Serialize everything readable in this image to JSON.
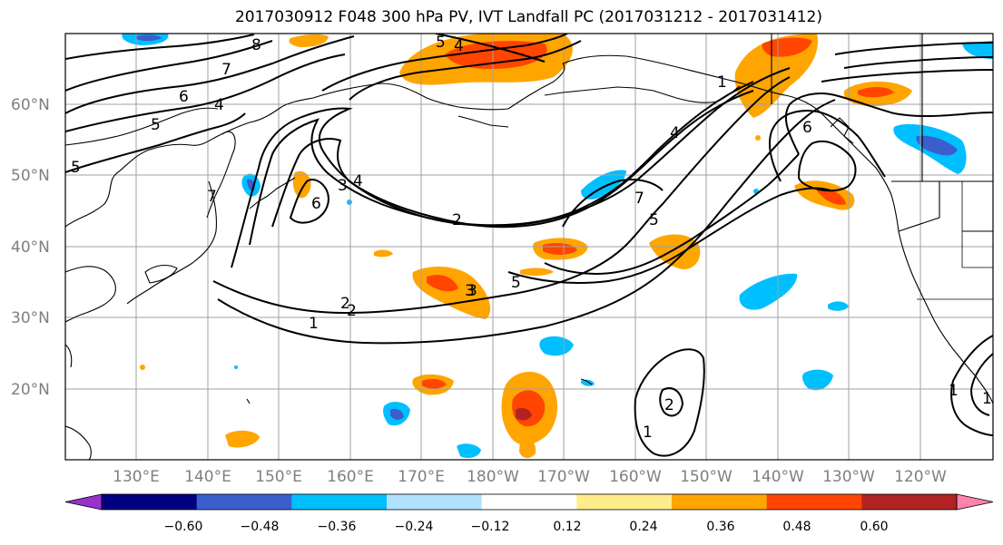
{
  "title": "2017030912 F048 300 hPa PV, IVT Landfall PC (2017031212 - 2017031412)",
  "lat_labels": [
    "60°N",
    "50°N",
    "40°N",
    "30°N",
    "20°N"
  ],
  "lon_labels": [
    "130°E",
    "140°E",
    "150°E",
    "160°E",
    "170°E",
    "180°W",
    "170°W",
    "160°W",
    "150°W",
    "140°W",
    "130°W",
    "120°W"
  ],
  "colorbar": {
    "colors": [
      "#9932CC",
      "#000080",
      "#3A5FCD",
      "#00BFFF",
      "#B0E2FF",
      "#FFFFFF",
      "#FFEC8B",
      "#FFA500",
      "#FF4500",
      "#B22222",
      "#FF82AB"
    ],
    "labels": [
      "−0.60",
      "−0.48",
      "−0.36",
      "−0.24",
      "−0.12",
      "0.12",
      "0.24",
      "0.36",
      "0.48",
      "0.60"
    ]
  },
  "contour_labels": [
    "8",
    "7",
    "6",
    "5",
    "4",
    "7",
    "6",
    "3",
    "4",
    "5",
    "4",
    "6",
    "1",
    "2",
    "3",
    "3",
    "2",
    "1",
    "2",
    "3",
    "5",
    "5",
    "4",
    "1",
    "1",
    "2",
    "1",
    "7",
    "5"
  ]
}
